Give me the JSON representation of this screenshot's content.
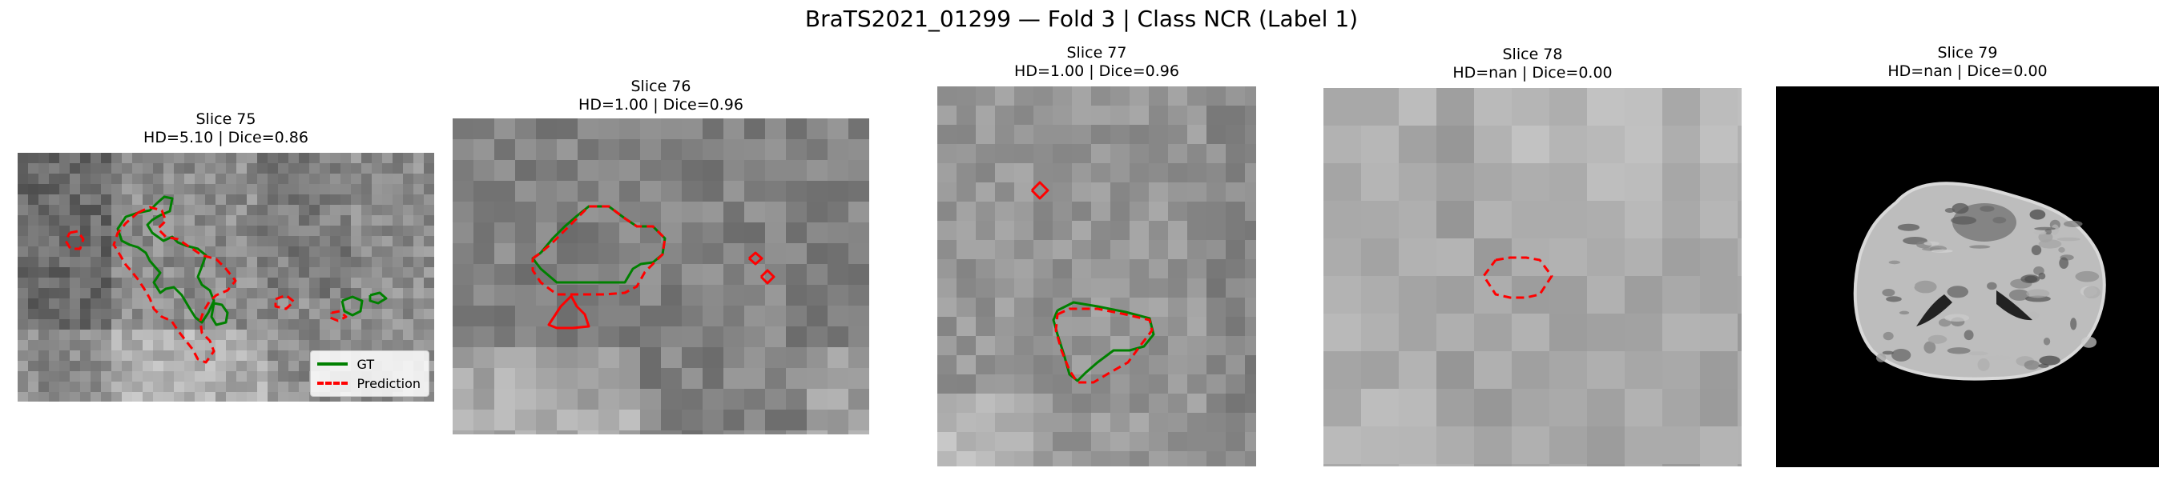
{
  "figure": {
    "suptitle": "BraTS2021_01299 — Fold 3 | Class NCR (Label 1)"
  },
  "colors": {
    "gt": "#008000",
    "prediction": "#ff0000",
    "background": "#000000"
  },
  "legend": {
    "placement": "lower-right of first panel",
    "gt_label": "GT",
    "prediction_label": "Prediction"
  },
  "panels": [
    {
      "slice": "Slice 75",
      "metrics": "HD=5.10 | Dice=0.86"
    },
    {
      "slice": "Slice 76",
      "metrics": "HD=1.00 | Dice=0.96"
    },
    {
      "slice": "Slice 77",
      "metrics": "HD=1.00 | Dice=0.96"
    },
    {
      "slice": "Slice 78",
      "metrics": "HD=nan | Dice=0.00"
    },
    {
      "slice": "Slice 79",
      "metrics": "HD=nan | Dice=0.00"
    }
  ]
}
